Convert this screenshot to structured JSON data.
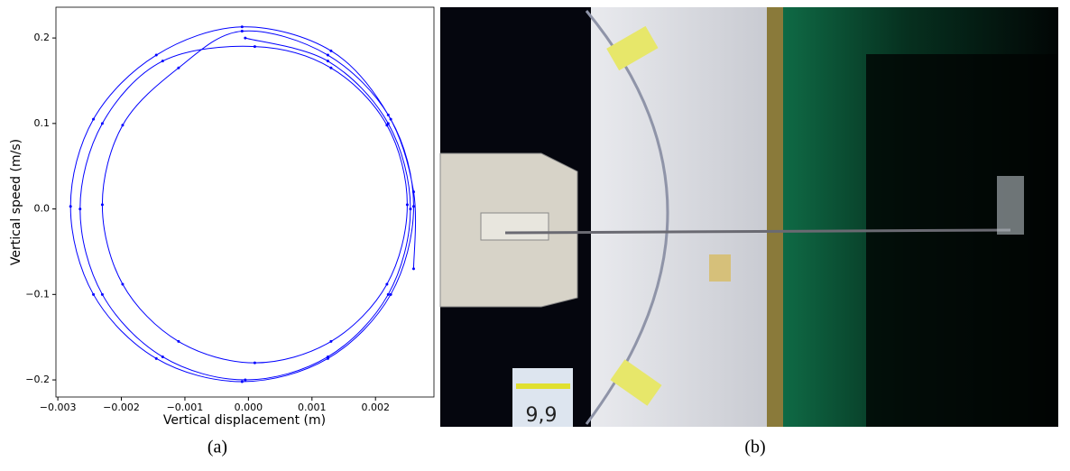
{
  "chart_data": {
    "type": "line",
    "xlabel": "Vertical displacement (m)",
    "ylabel": "Vertical speed (m/s)",
    "xlim": [
      -0.00303,
      0.00292
    ],
    "ylim": [
      -0.22,
      0.236
    ],
    "xticks": [
      {
        "value": -0.003,
        "label": "−0.003"
      },
      {
        "value": -0.002,
        "label": "−0.002"
      },
      {
        "value": -0.001,
        "label": "−0.001"
      },
      {
        "value": 0,
        "label": "0.000"
      },
      0.001,
      0.002
    ],
    "yticks": [
      {
        "value": -0.2,
        "label": "−0.2"
      },
      {
        "value": -0.1,
        "label": "−0.1"
      },
      {
        "value": 0,
        "label": "0.0"
      },
      0.1,
      0.2
    ],
    "series": [
      {
        "color": "#0000ff",
        "x": [
          -5e-05,
          0.00125,
          0.0022,
          0.00255,
          0.0022,
          0.00125,
          -5e-05,
          -0.00135,
          -0.0023,
          -0.00265,
          -0.0023,
          -0.00135,
          0.0001,
          0.0013,
          0.00218,
          0.0025,
          0.00218,
          0.0013,
          0.0001,
          -0.0011,
          -0.00198,
          -0.0023,
          -0.00198,
          -0.0011,
          -0.0001,
          0.00125,
          0.00224,
          0.0026,
          0.00224,
          0.00125,
          -0.0001,
          -0.00145,
          -0.00244,
          -0.0028,
          -0.00244,
          -0.00145,
          -0.0001,
          0.0013,
          0.0022,
          0.0026,
          0.0026
        ],
        "values": [
          0.2,
          0.173,
          0.1,
          0,
          -0.1,
          -0.173,
          -0.2,
          -0.173,
          -0.1,
          0,
          0.1,
          0.173,
          0.19,
          0.165,
          0.098,
          0.005,
          -0.088,
          -0.155,
          -0.18,
          -0.155,
          -0.088,
          0.005,
          0.098,
          0.165,
          0.208,
          0.18,
          0.105,
          0.003,
          -0.1,
          -0.175,
          -0.202,
          -0.175,
          -0.1,
          0.003,
          0.105,
          0.18,
          0.213,
          0.185,
          0.11,
          0.02,
          -0.07
        ]
      }
    ]
  },
  "captions": [
    "(a)",
    "(b)"
  ],
  "photo": {
    "screen_text": "9,9"
  }
}
